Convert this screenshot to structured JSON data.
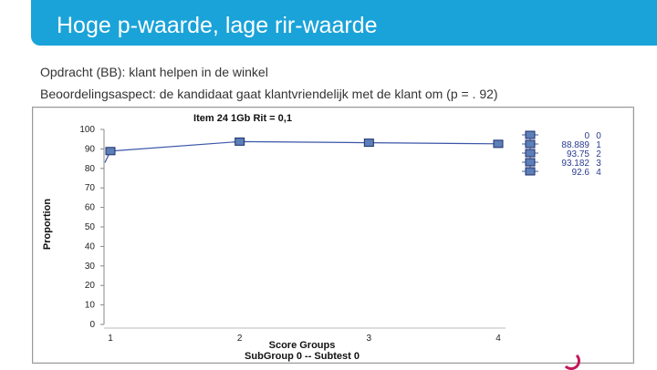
{
  "slide": {
    "title": "Hoge p-waarde, lage rir-waarde",
    "description_line1": "Opdracht (BB): klant helpen in de winkel",
    "description_line2": "Beoordelingsaspect: de kandidaat gaat klantvriendelijk met de klant om (p = . 92)"
  },
  "colors": {
    "title_bar": "#1aa3d9",
    "series_line": "#3a55a8",
    "marker_fill": "#5b7fb6",
    "legend_text": "#2a3c8f"
  },
  "chart_data": {
    "type": "line",
    "title": "Item 24  1Gb  Rit = 0,1",
    "xlabel": "Score Groups",
    "ylabel": "Proportion",
    "subtitle": "SubGroup 0 -- Subtest 0",
    "x": [
      1,
      2,
      3,
      4
    ],
    "series": [
      {
        "values": [
          88.889,
          93.75,
          93.182,
          92.6
        ]
      }
    ],
    "ylim": [
      0,
      100
    ],
    "yticks": [
      0,
      10,
      20,
      30,
      40,
      50,
      60,
      70,
      80,
      90,
      100
    ],
    "xticks": [
      "1",
      "2",
      "3",
      "4"
    ],
    "grid": false,
    "legend_position": "top-right",
    "legend": [
      {
        "value": "0",
        "group": "0"
      },
      {
        "value": "88.889",
        "group": "1"
      },
      {
        "value": "93.75",
        "group": "2"
      },
      {
        "value": "93.182",
        "group": "3"
      },
      {
        "value": "92.6",
        "group": "4"
      }
    ]
  }
}
